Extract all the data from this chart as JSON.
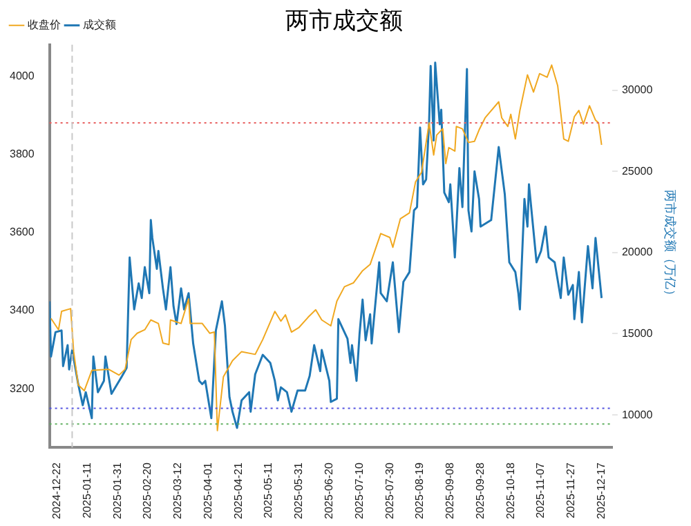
{
  "chart_data": {
    "type": "line",
    "title": "两市成交额",
    "y2label": "两市成交额（万亿）",
    "xlim": [
      "2024-12-17",
      "2025-12-24"
    ],
    "xticks": [
      "2024-12-22",
      "2025-01-11",
      "2025-01-31",
      "2025-02-20",
      "2025-03-12",
      "2025-04-01",
      "2025-04-21",
      "2025-05-11",
      "2025-05-31",
      "2025-06-20",
      "2025-07-10",
      "2025-07-30",
      "2025-08-19",
      "2025-09-08",
      "2025-09-28",
      "2025-10-18",
      "2025-11-07",
      "2025-11-27",
      "2025-12-17"
    ],
    "ylim": [
      3050,
      4080
    ],
    "yticks": [
      3200,
      3400,
      3600,
      3800,
      4000
    ],
    "y2lim": [
      8000,
      32800
    ],
    "y2ticks": [
      10000,
      15000,
      20000,
      25000,
      30000
    ],
    "legend": "top left",
    "grid": false,
    "marker": "none",
    "line_style": "solid",
    "ref_lines": [
      {
        "axis": "y",
        "value": 3880,
        "color": "#e86060",
        "line_style": "dotted"
      },
      {
        "axis": "y",
        "value": 3150,
        "color": "#5050e0",
        "line_style": "dotted"
      },
      {
        "axis": "y",
        "value": 3110,
        "color": "#60b060",
        "line_style": "dotted"
      },
      {
        "axis": "x",
        "value": "2025-01-01",
        "color": "#c8c8c8",
        "line_style": "dashed"
      }
    ],
    "series": [
      {
        "name": "收盘价",
        "axis": "y",
        "color": "#f0a820",
        "x": [
          "2024-12-18",
          "2024-12-23",
          "2024-12-25",
          "2024-12-31",
          "2025-01-02",
          "2025-01-05",
          "2025-01-09",
          "2025-01-14",
          "2025-01-25",
          "2025-02-01",
          "2025-02-05",
          "2025-02-09",
          "2025-02-13",
          "2025-02-18",
          "2025-02-22",
          "2025-02-27",
          "2025-03-02",
          "2025-03-06",
          "2025-03-07",
          "2025-03-14",
          "2025-03-19",
          "2025-03-20",
          "2025-03-28",
          "2025-04-02",
          "2025-04-05",
          "2025-04-07",
          "2025-04-11",
          "2025-04-17",
          "2025-04-23",
          "2025-05-02",
          "2025-05-07",
          "2025-05-15",
          "2025-05-19",
          "2025-05-22",
          "2025-05-26",
          "2025-05-31",
          "2025-06-06",
          "2025-06-11",
          "2025-06-15",
          "2025-06-21",
          "2025-06-25",
          "2025-06-30",
          "2025-07-06",
          "2025-07-12",
          "2025-07-17",
          "2025-07-24",
          "2025-07-30",
          "2025-08-01",
          "2025-08-06",
          "2025-08-12",
          "2025-08-16",
          "2025-08-20",
          "2025-08-25",
          "2025-08-28",
          "2025-08-30",
          "2025-09-03",
          "2025-09-05",
          "2025-09-07",
          "2025-09-11",
          "2025-09-12",
          "2025-09-16",
          "2025-09-20",
          "2025-09-24",
          "2025-09-27",
          "2025-10-01",
          "2025-10-10",
          "2025-10-12",
          "2025-10-16",
          "2025-10-18",
          "2025-10-21",
          "2025-10-24",
          "2025-10-29",
          "2025-11-02",
          "2025-11-06",
          "2025-11-11",
          "2025-11-14",
          "2025-11-18",
          "2025-11-22",
          "2025-11-25",
          "2025-11-29",
          "2025-12-02",
          "2025-12-05",
          "2025-12-09",
          "2025-12-13",
          "2025-12-15",
          "2025-12-17"
        ],
        "values": [
          3380,
          3351,
          3398,
          3405,
          3295,
          3210,
          3195,
          3247,
          3250,
          3235,
          3250,
          3326,
          3342,
          3351,
          3376,
          3367,
          3317,
          3313,
          3376,
          3367,
          3430,
          3367,
          3367,
          3342,
          3345,
          3093,
          3231,
          3272,
          3295,
          3288,
          3326,
          3398,
          3373,
          3389,
          3345,
          3357,
          3383,
          3402,
          3376,
          3361,
          3424,
          3461,
          3471,
          3502,
          3518,
          3597,
          3587,
          3562,
          3635,
          3650,
          3729,
          3754,
          3880,
          3798,
          3849,
          3865,
          3776,
          3817,
          3808,
          3871,
          3865,
          3830,
          3833,
          3862,
          3893,
          3934,
          3893,
          3871,
          3902,
          3839,
          3912,
          4003,
          3959,
          4006,
          3997,
          4028,
          3975,
          3839,
          3833,
          3896,
          3912,
          3877,
          3924,
          3887,
          3880,
          3824
        ]
      },
      {
        "name": "成交额",
        "axis": "y2",
        "color": "#1f77b4",
        "x": [
          "2024-12-17",
          "2024-12-18",
          "2024-12-21",
          "2024-12-25",
          "2024-12-26",
          "2024-12-29",
          "2024-12-30",
          "2025-01-01",
          "2025-01-05",
          "2025-01-08",
          "2025-01-10",
          "2025-01-14",
          "2025-01-15",
          "2025-01-18",
          "2025-01-22",
          "2025-01-23",
          "2025-01-27",
          "2025-02-03",
          "2025-02-06",
          "2025-02-08",
          "2025-02-11",
          "2025-02-14",
          "2025-02-16",
          "2025-02-18",
          "2025-02-21",
          "2025-02-22",
          "2025-02-23",
          "2025-02-26",
          "2025-02-27",
          "2025-03-02",
          "2025-03-04",
          "2025-03-07",
          "2025-03-09",
          "2025-03-11",
          "2025-03-14",
          "2025-03-16",
          "2025-03-19",
          "2025-03-22",
          "2025-03-26",
          "2025-03-28",
          "2025-03-30",
          "2025-04-03",
          "2025-04-06",
          "2025-04-10",
          "2025-04-12",
          "2025-04-15",
          "2025-04-17",
          "2025-04-20",
          "2025-04-23",
          "2025-04-28",
          "2025-04-29",
          "2025-05-02",
          "2025-05-07",
          "2025-05-12",
          "2025-05-15",
          "2025-05-17",
          "2025-05-19",
          "2025-05-23",
          "2025-05-26",
          "2025-05-30",
          "2025-06-04",
          "2025-06-07",
          "2025-06-10",
          "2025-06-14",
          "2025-06-15",
          "2025-06-20",
          "2025-06-21",
          "2025-06-25",
          "2025-06-26",
          "2025-06-27",
          "2025-07-02",
          "2025-07-04",
          "2025-07-05",
          "2025-07-08",
          "2025-07-10",
          "2025-07-12",
          "2025-07-14",
          "2025-07-17",
          "2025-07-18",
          "2025-07-23",
          "2025-07-24",
          "2025-07-28",
          "2025-08-01",
          "2025-08-05",
          "2025-08-08",
          "2025-08-12",
          "2025-08-15",
          "2025-08-17",
          "2025-08-19",
          "2025-08-21",
          "2025-08-23",
          "2025-08-25",
          "2025-08-26",
          "2025-08-28",
          "2025-08-29",
          "2025-09-01",
          "2025-09-02",
          "2025-09-04",
          "2025-09-07",
          "2025-09-08",
          "2025-09-11",
          "2025-09-14",
          "2025-09-16",
          "2025-09-19",
          "2025-09-20",
          "2025-09-22",
          "2025-09-24",
          "2025-09-27",
          "2025-09-28",
          "2025-10-05",
          "2025-10-10",
          "2025-10-14",
          "2025-10-17",
          "2025-10-21",
          "2025-10-23",
          "2025-10-24",
          "2025-10-27",
          "2025-10-29",
          "2025-10-30",
          "2025-11-04",
          "2025-11-07",
          "2025-11-10",
          "2025-11-12",
          "2025-11-16",
          "2025-11-20",
          "2025-11-22",
          "2025-11-25",
          "2025-11-28",
          "2025-11-29",
          "2025-12-02",
          "2025-12-04",
          "2025-12-08",
          "2025-12-11",
          "2025-12-13",
          "2025-12-17"
        ],
        "values": [
          17000,
          13600,
          15100,
          15200,
          13000,
          14300,
          12800,
          14000,
          11900,
          10600,
          11400,
          9800,
          13600,
          11400,
          12100,
          13600,
          11300,
          12400,
          12900,
          19700,
          16500,
          18100,
          17200,
          19100,
          17500,
          22000,
          20900,
          19000,
          20100,
          17800,
          16500,
          19100,
          16700,
          15600,
          17800,
          16500,
          17500,
          14400,
          12100,
          11900,
          12100,
          9800,
          15200,
          17000,
          15500,
          11100,
          10200,
          9200,
          10900,
          11400,
          10200,
          12500,
          13700,
          13200,
          12100,
          10900,
          11700,
          11400,
          10200,
          11500,
          11500,
          12400,
          14300,
          12700,
          14000,
          12100,
          10800,
          11000,
          15900,
          15700,
          14700,
          13200,
          14300,
          12100,
          15000,
          17100,
          14600,
          16200,
          14400,
          19400,
          17500,
          17000,
          19400,
          15100,
          18200,
          18800,
          22600,
          22800,
          27700,
          24200,
          24500,
          28100,
          31500,
          26900,
          31700,
          27900,
          28800,
          23700,
          23100,
          24200,
          19700,
          25200,
          22800,
          31300,
          22600,
          21300,
          25000,
          23300,
          21600,
          22000,
          26500,
          23600,
          19400,
          18800,
          17500,
          16500,
          23300,
          21600,
          24200,
          19400,
          20100,
          21600,
          19700,
          19400,
          17200,
          19700,
          17400,
          18000,
          15900,
          18800,
          15700,
          20400,
          17800,
          20900,
          17200
        ]
      }
    ]
  }
}
